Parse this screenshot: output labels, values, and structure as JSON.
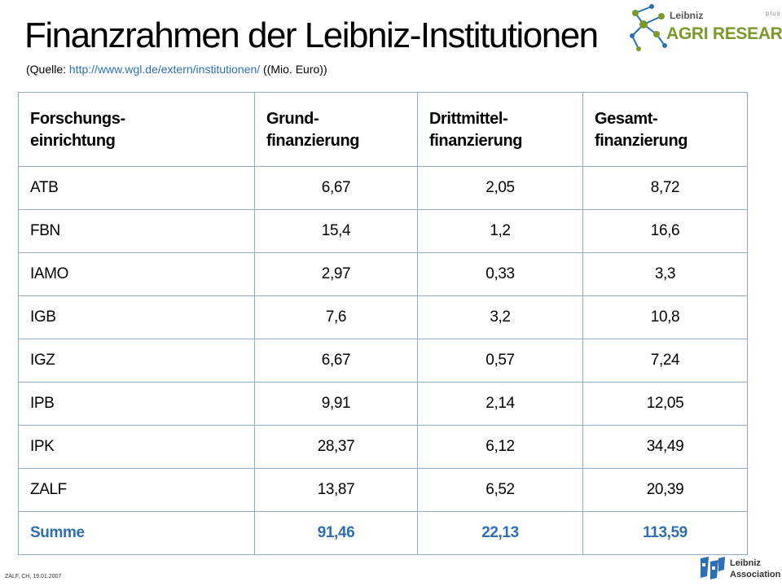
{
  "header": {
    "title": "Finanzrahmen der Leibniz-Institutionen",
    "subtitle_prefix": "(Quelle: ",
    "subtitle_link": "http://www.wgl.de/extern/institutionen/",
    "subtitle_suffix": " ((Mio. Euro))"
  },
  "logo_top": {
    "leibniz": "Leibniz",
    "plus": "plus",
    "agri": "AGRI RESEARCH"
  },
  "table": {
    "headers": [
      [
        "Forschungs-",
        "einrichtung"
      ],
      [
        "Grund-",
        "finanzierung"
      ],
      [
        "Drittmittel-",
        "finanzierung"
      ],
      [
        "Gesamt-",
        "finanzierung"
      ]
    ],
    "rows": [
      [
        "ATB",
        "6,67",
        "2,05",
        "8,72"
      ],
      [
        "FBN",
        "15,4",
        "1,2",
        "16,6"
      ],
      [
        "IAMO",
        "2,97",
        "0,33",
        "3,3"
      ],
      [
        "IGB",
        "7,6",
        "3,2",
        "10,8"
      ],
      [
        "IGZ",
        "6,67",
        "0,57",
        "7,24"
      ],
      [
        "IPB",
        "9,91",
        "2,14",
        "12,05"
      ],
      [
        "IPK",
        "28,37",
        "6,12",
        "34,49"
      ],
      [
        "ZALF",
        "13,87",
        "6,52",
        "20,39"
      ]
    ],
    "sum": [
      "Summe",
      "91,46",
      "22,13",
      "113,59"
    ]
  },
  "footer": {
    "note": "ZALF, CH, 19.01.2007",
    "assoc_line1": "Leibniz",
    "assoc_line2": "Association"
  },
  "colors": {
    "accent": "#2e6fb3",
    "table_border": "#8eaad1",
    "agri_green": "#7a9a2c"
  }
}
